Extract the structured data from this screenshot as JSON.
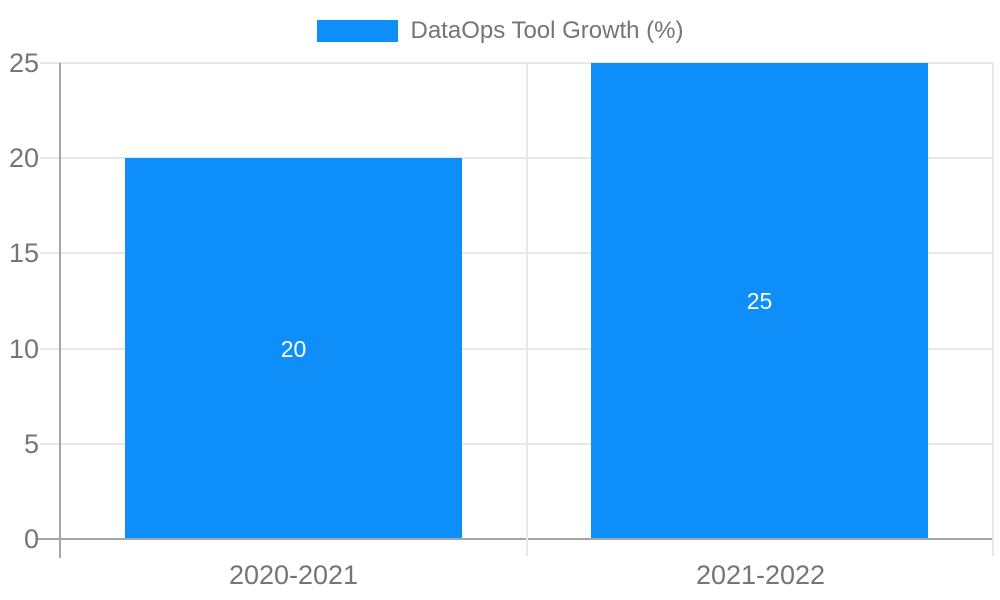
{
  "chart_data": {
    "type": "bar",
    "title": "DataOps Tool Growth (%)",
    "categories": [
      "2020-2021",
      "2021-2022"
    ],
    "series": [
      {
        "name": "DataOps Tool Growth (%)",
        "values": [
          20,
          25
        ]
      }
    ],
    "values": [
      20,
      25
    ],
    "value_labels": [
      "20",
      "25"
    ],
    "value_label_position": "inside-center",
    "xlabel": "",
    "ylabel": "",
    "ylim": [
      0,
      25
    ],
    "yticks": [
      0,
      5,
      10,
      15,
      20,
      25
    ],
    "ytick_labels": [
      "0",
      "5",
      "10",
      "15",
      "20",
      "25"
    ],
    "grid": true,
    "legend_position": "top-center",
    "colors": {
      "bar": "#0d8ef9",
      "gridline": "#e8e8e8",
      "axis": "#a6a6a6",
      "tick_text": "#757575",
      "legend_text": "#757575",
      "value_label_text": "#ffffff",
      "background": "#ffffff"
    }
  }
}
